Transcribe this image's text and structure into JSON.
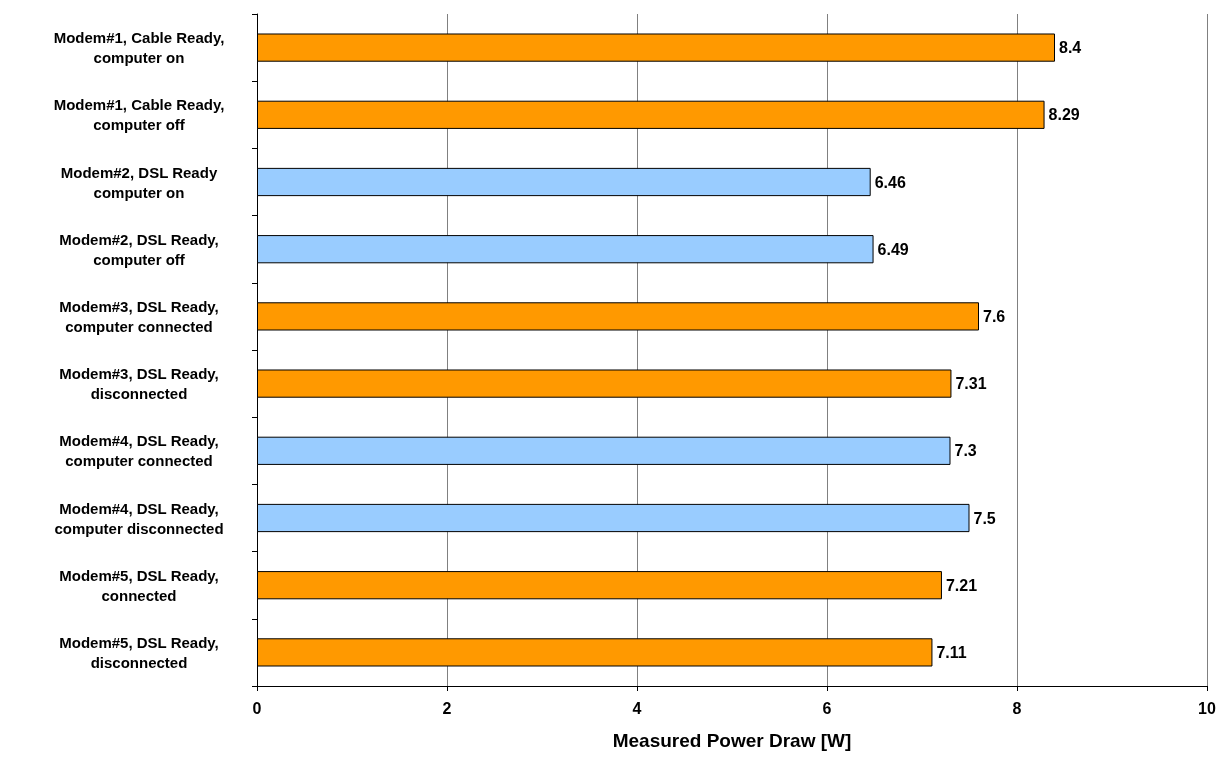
{
  "chart_data": {
    "type": "bar",
    "orientation": "horizontal",
    "xlabel": "Measured Power Draw [W]",
    "categories": [
      "Modem#1, Cable Ready,\ncomputer on",
      "Modem#1, Cable Ready,\ncomputer off",
      "Modem#2, DSL Ready\ncomputer on",
      "Modem#2, DSL Ready,\ncomputer off",
      "Modem#3, DSL Ready,\ncomputer connected",
      "Modem#3, DSL Ready,\ndisconnected",
      "Modem#4, DSL Ready,\ncomputer connected",
      "Modem#4, DSL Ready,\ncomputer disconnected",
      "Modem#5, DSL Ready,\nconnected",
      "Modem#5, DSL Ready,\ndisconnected"
    ],
    "values": [
      8.4,
      8.29,
      6.46,
      6.49,
      7.6,
      7.31,
      7.3,
      7.5,
      7.21,
      7.11
    ],
    "colors": [
      "#ff9900",
      "#ff9900",
      "#99ccff",
      "#99ccff",
      "#ff9900",
      "#ff9900",
      "#99ccff",
      "#99ccff",
      "#ff9900",
      "#ff9900"
    ],
    "xlim": [
      0,
      10
    ],
    "xticks": [
      0,
      2,
      4,
      6,
      8,
      10
    ],
    "grid": "x",
    "data_labels": true
  }
}
